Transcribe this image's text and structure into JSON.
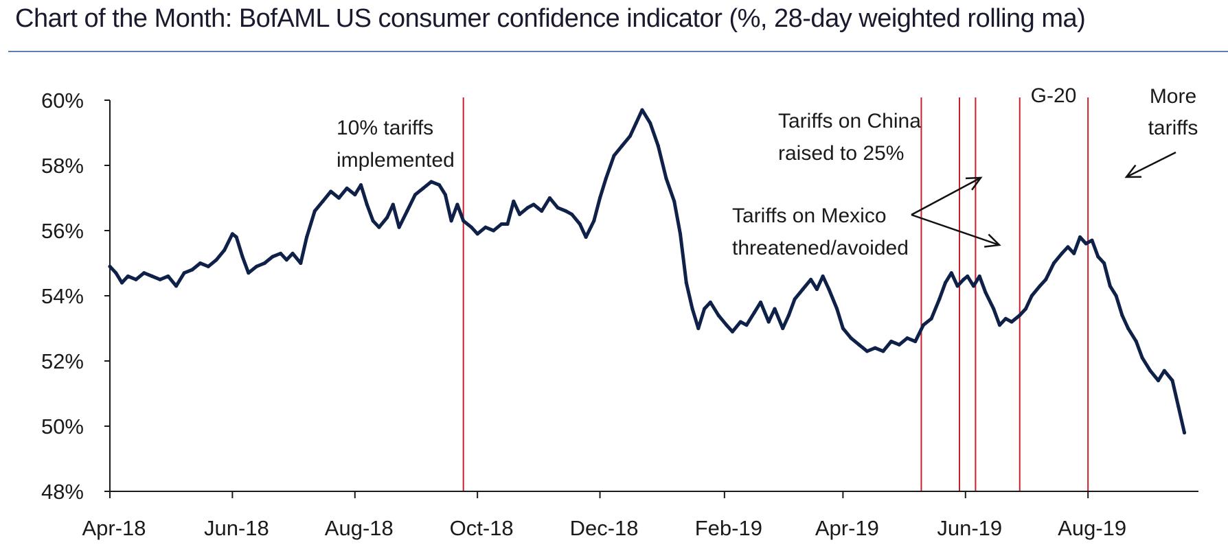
{
  "title": "Chart of the Month: BofAML US consumer confidence indicator (%, 28-day weighted rolling ma)",
  "colors": {
    "line": "#0f2148",
    "event_line": "#c8202a",
    "axis": "#1a1a1a",
    "text": "#1a1a1a",
    "title_rule": "#5a7fb0"
  },
  "chart_data": {
    "type": "line",
    "title": "Chart of the Month: BofAML US consumer confidence indicator (%, 28-day weighted rolling ma)",
    "xlabel": "",
    "ylabel": "",
    "ylim": [
      48,
      60
    ],
    "yticks": [
      48,
      50,
      52,
      54,
      56,
      58,
      60
    ],
    "ytick_labels": [
      "48%",
      "50%",
      "52%",
      "54%",
      "56%",
      "58%",
      "60%"
    ],
    "xlim": [
      "2018-04-01",
      "2019-09-25"
    ],
    "xticks": [
      "2018-04-01",
      "2018-06-01",
      "2018-08-01",
      "2018-10-01",
      "2018-12-01",
      "2019-02-01",
      "2019-04-01",
      "2019-06-01",
      "2019-08-01"
    ],
    "xtick_labels": [
      "Apr-18",
      "Jun-18",
      "Aug-18",
      "Oct-18",
      "Dec-18",
      "Feb-19",
      "Apr-19",
      "Jun-19",
      "Aug-19"
    ],
    "grid": false,
    "legend": "none",
    "series": [
      {
        "points": [
          [
            "2018-04-01",
            54.9
          ],
          [
            "2018-04-04",
            54.7
          ],
          [
            "2018-04-07",
            54.4
          ],
          [
            "2018-04-10",
            54.6
          ],
          [
            "2018-04-14",
            54.5
          ],
          [
            "2018-04-18",
            54.7
          ],
          [
            "2018-04-22",
            54.6
          ],
          [
            "2018-04-26",
            54.5
          ],
          [
            "2018-04-30",
            54.6
          ],
          [
            "2018-05-04",
            54.3
          ],
          [
            "2018-05-08",
            54.7
          ],
          [
            "2018-05-12",
            54.8
          ],
          [
            "2018-05-16",
            55.0
          ],
          [
            "2018-05-20",
            54.9
          ],
          [
            "2018-05-24",
            55.1
          ],
          [
            "2018-05-28",
            55.4
          ],
          [
            "2018-06-01",
            55.9
          ],
          [
            "2018-06-03",
            55.8
          ],
          [
            "2018-06-06",
            55.2
          ],
          [
            "2018-06-09",
            54.7
          ],
          [
            "2018-06-13",
            54.9
          ],
          [
            "2018-06-17",
            55.0
          ],
          [
            "2018-06-21",
            55.2
          ],
          [
            "2018-06-25",
            55.3
          ],
          [
            "2018-06-28",
            55.1
          ],
          [
            "2018-07-01",
            55.3
          ],
          [
            "2018-07-05",
            55.0
          ],
          [
            "2018-07-08",
            55.8
          ],
          [
            "2018-07-12",
            56.6
          ],
          [
            "2018-07-16",
            56.9
          ],
          [
            "2018-07-20",
            57.2
          ],
          [
            "2018-07-24",
            57.0
          ],
          [
            "2018-07-28",
            57.3
          ],
          [
            "2018-08-01",
            57.1
          ],
          [
            "2018-08-04",
            57.4
          ],
          [
            "2018-08-07",
            56.8
          ],
          [
            "2018-08-10",
            56.3
          ],
          [
            "2018-08-13",
            56.1
          ],
          [
            "2018-08-17",
            56.4
          ],
          [
            "2018-08-20",
            56.8
          ],
          [
            "2018-08-23",
            56.1
          ],
          [
            "2018-08-27",
            56.6
          ],
          [
            "2018-08-31",
            57.1
          ],
          [
            "2018-09-04",
            57.3
          ],
          [
            "2018-09-08",
            57.5
          ],
          [
            "2018-09-12",
            57.4
          ],
          [
            "2018-09-15",
            57.1
          ],
          [
            "2018-09-18",
            56.3
          ],
          [
            "2018-09-21",
            56.8
          ],
          [
            "2018-09-24",
            56.3
          ],
          [
            "2018-09-28",
            56.1
          ],
          [
            "2018-10-01",
            55.9
          ],
          [
            "2018-10-05",
            56.1
          ],
          [
            "2018-10-09",
            56.0
          ],
          [
            "2018-10-13",
            56.2
          ],
          [
            "2018-10-16",
            56.2
          ],
          [
            "2018-10-19",
            56.9
          ],
          [
            "2018-10-22",
            56.5
          ],
          [
            "2018-10-26",
            56.7
          ],
          [
            "2018-10-29",
            56.8
          ],
          [
            "2018-11-02",
            56.6
          ],
          [
            "2018-11-06",
            57.0
          ],
          [
            "2018-11-10",
            56.7
          ],
          [
            "2018-11-14",
            56.6
          ],
          [
            "2018-11-17",
            56.5
          ],
          [
            "2018-11-21",
            56.2
          ],
          [
            "2018-11-24",
            55.8
          ],
          [
            "2018-11-28",
            56.3
          ],
          [
            "2018-12-01",
            57.0
          ],
          [
            "2018-12-04",
            57.6
          ],
          [
            "2018-12-08",
            58.3
          ],
          [
            "2018-12-12",
            58.6
          ],
          [
            "2018-12-16",
            58.9
          ],
          [
            "2018-12-19",
            59.3
          ],
          [
            "2018-12-22",
            59.7
          ],
          [
            "2018-12-26",
            59.3
          ],
          [
            "2018-12-30",
            58.6
          ],
          [
            "2019-01-03",
            57.6
          ],
          [
            "2019-01-07",
            56.9
          ],
          [
            "2019-01-10",
            55.9
          ],
          [
            "2019-01-13",
            54.4
          ],
          [
            "2019-01-16",
            53.6
          ],
          [
            "2019-01-19",
            53.0
          ],
          [
            "2019-01-22",
            53.6
          ],
          [
            "2019-01-25",
            53.8
          ],
          [
            "2019-01-29",
            53.4
          ],
          [
            "2019-02-02",
            53.1
          ],
          [
            "2019-02-05",
            52.9
          ],
          [
            "2019-02-09",
            53.2
          ],
          [
            "2019-02-12",
            53.1
          ],
          [
            "2019-02-16",
            53.5
          ],
          [
            "2019-02-19",
            53.8
          ],
          [
            "2019-02-23",
            53.2
          ],
          [
            "2019-02-26",
            53.6
          ],
          [
            "2019-03-02",
            53.0
          ],
          [
            "2019-03-05",
            53.4
          ],
          [
            "2019-03-08",
            53.9
          ],
          [
            "2019-03-12",
            54.2
          ],
          [
            "2019-03-16",
            54.5
          ],
          [
            "2019-03-19",
            54.2
          ],
          [
            "2019-03-22",
            54.6
          ],
          [
            "2019-03-25",
            54.2
          ],
          [
            "2019-03-29",
            53.6
          ],
          [
            "2019-04-01",
            53.0
          ],
          [
            "2019-04-05",
            52.7
          ],
          [
            "2019-04-09",
            52.5
          ],
          [
            "2019-04-13",
            52.3
          ],
          [
            "2019-04-17",
            52.4
          ],
          [
            "2019-04-21",
            52.3
          ],
          [
            "2019-04-25",
            52.6
          ],
          [
            "2019-04-29",
            52.5
          ],
          [
            "2019-05-03",
            52.7
          ],
          [
            "2019-05-07",
            52.6
          ],
          [
            "2019-05-11",
            53.1
          ],
          [
            "2019-05-15",
            53.3
          ],
          [
            "2019-05-19",
            53.9
          ],
          [
            "2019-05-22",
            54.4
          ],
          [
            "2019-05-25",
            54.7
          ],
          [
            "2019-05-28",
            54.3
          ],
          [
            "2019-05-31",
            54.5
          ],
          [
            "2019-06-02",
            54.6
          ],
          [
            "2019-06-05",
            54.3
          ],
          [
            "2019-06-08",
            54.6
          ],
          [
            "2019-06-11",
            54.1
          ],
          [
            "2019-06-15",
            53.6
          ],
          [
            "2019-06-18",
            53.1
          ],
          [
            "2019-06-21",
            53.3
          ],
          [
            "2019-06-24",
            53.2
          ],
          [
            "2019-06-28",
            53.4
          ],
          [
            "2019-07-01",
            53.6
          ],
          [
            "2019-07-04",
            54.0
          ],
          [
            "2019-07-08",
            54.3
          ],
          [
            "2019-07-11",
            54.5
          ],
          [
            "2019-07-15",
            55.0
          ],
          [
            "2019-07-19",
            55.3
          ],
          [
            "2019-07-22",
            55.5
          ],
          [
            "2019-07-25",
            55.3
          ],
          [
            "2019-07-28",
            55.8
          ],
          [
            "2019-07-31",
            55.6
          ],
          [
            "2019-08-03",
            55.7
          ],
          [
            "2019-08-06",
            55.2
          ],
          [
            "2019-08-09",
            55.0
          ],
          [
            "2019-08-12",
            54.3
          ],
          [
            "2019-08-15",
            54.0
          ],
          [
            "2019-08-18",
            53.4
          ],
          [
            "2019-08-21",
            53.0
          ],
          [
            "2019-08-25",
            52.6
          ],
          [
            "2019-08-28",
            52.1
          ],
          [
            "2019-09-01",
            51.7
          ],
          [
            "2019-09-05",
            51.4
          ],
          [
            "2019-09-08",
            51.7
          ],
          [
            "2019-09-12",
            51.4
          ],
          [
            "2019-09-15",
            50.6
          ],
          [
            "2019-09-18",
            49.8
          ]
        ]
      }
    ],
    "event_lines": [
      "2018-09-24",
      "2019-05-10",
      "2019-05-29",
      "2019-06-06",
      "2019-06-28",
      "2019-08-01"
    ],
    "annotations": [
      {
        "lines": [
          "10% tariffs",
          "implemented"
        ]
      },
      {
        "lines": [
          "Tariffs on China",
          "raised to 25%"
        ]
      },
      {
        "lines": [
          "Tariffs on Mexico",
          "threatened/avoided"
        ]
      },
      {
        "lines": [
          "G-20"
        ]
      },
      {
        "lines": [
          "More",
          "tariffs"
        ]
      }
    ]
  }
}
